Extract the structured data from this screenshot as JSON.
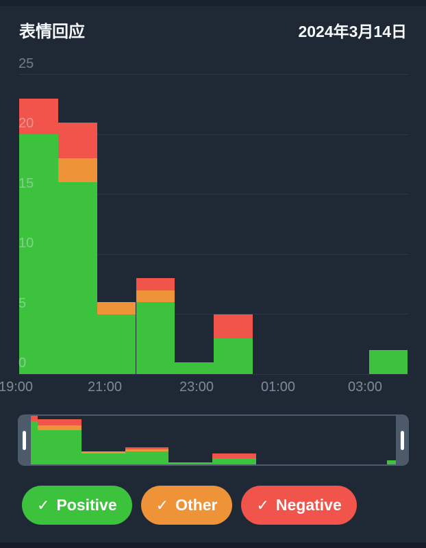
{
  "header": {
    "title": "表情回应",
    "date": "2024年3月14日"
  },
  "colors": {
    "background": "#1f2936",
    "positive": "#3dc23d",
    "other": "#ef9338",
    "negative": "#f0544b",
    "handle": "#4d5a6a",
    "grid": "rgba(255,255,255,0.08)",
    "axis_label": "rgba(213,226,240,0.5)"
  },
  "chart_data": {
    "type": "bar",
    "stacked": true,
    "title": "表情回应",
    "categories": [
      "19:00",
      "20:00",
      "21:00",
      "22:00",
      "23:00",
      "00:00",
      "01:00",
      "02:00",
      "03:00",
      "04:00"
    ],
    "series": [
      {
        "name": "Positive",
        "color": "#3dc23d",
        "values": [
          20,
          16,
          5,
          6,
          1,
          3,
          0,
          0,
          0,
          2
        ]
      },
      {
        "name": "Other",
        "color": "#ef9338",
        "values": [
          0,
          2,
          1,
          1,
          0,
          0,
          0,
          0,
          0,
          0
        ]
      },
      {
        "name": "Negative",
        "color": "#f0544b",
        "values": [
          3,
          3,
          0,
          1,
          0,
          2,
          0,
          0,
          0,
          0
        ]
      }
    ],
    "ylim": [
      0,
      25
    ],
    "y_ticks": [
      0,
      5,
      10,
      15,
      20,
      25
    ],
    "x_tick_labels": [
      "19:00",
      "21:00",
      "23:00",
      "01:00",
      "03:00"
    ],
    "grid": true,
    "legend_position": "bottom",
    "minimap": {
      "selection": "full-range"
    }
  },
  "legend": {
    "items": [
      {
        "label": "Positive",
        "check": "✓",
        "color": "#3dc23d",
        "enabled": true
      },
      {
        "label": "Other",
        "check": "✓",
        "color": "#ef9338",
        "enabled": true
      },
      {
        "label": "Negative",
        "check": "✓",
        "color": "#f0544b",
        "enabled": true
      }
    ]
  }
}
